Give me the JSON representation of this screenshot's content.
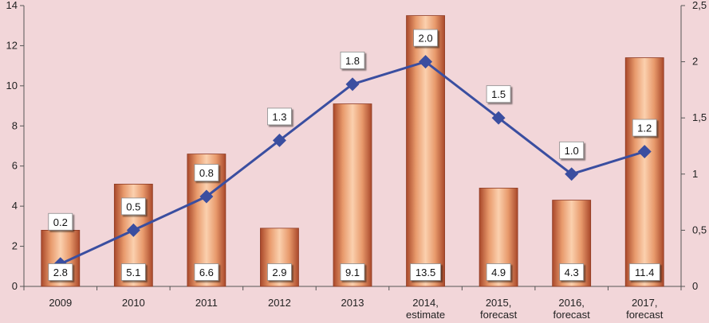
{
  "chart_data": {
    "type": "bar",
    "categories": [
      [
        "2009"
      ],
      [
        "2010"
      ],
      [
        "2011"
      ],
      [
        "2012"
      ],
      [
        "2013"
      ],
      [
        "2014,",
        "estimate"
      ],
      [
        "2015,",
        "forecast"
      ],
      [
        "2016,",
        "forecast"
      ],
      [
        "2017,",
        "forecast"
      ]
    ],
    "series": [
      {
        "type": "bar",
        "axis": "left",
        "values": [
          2.8,
          5.1,
          6.6,
          2.9,
          9.1,
          13.5,
          4.9,
          4.3,
          11.4
        ],
        "labels": [
          "2.8",
          "5.1",
          "6.6",
          "2.9",
          "9.1",
          "13.5",
          "4.9",
          "4.3",
          "11.4"
        ],
        "color": "#c8754a"
      },
      {
        "type": "line",
        "axis": "right",
        "values": [
          0.2,
          0.5,
          0.8,
          1.3,
          1.8,
          2.0,
          1.5,
          1.0,
          1.2
        ],
        "labels": [
          "0.2",
          "0.5",
          "0.8",
          "1.3",
          "1.8",
          "2.0",
          "1.5",
          "1.0",
          "1.2"
        ],
        "color": "#3a4ea0"
      }
    ],
    "y_left": {
      "min": 0,
      "max": 14,
      "ticks": [
        0,
        2,
        4,
        6,
        8,
        10,
        12,
        14
      ],
      "tick_labels": [
        "0",
        "2",
        "4",
        "6",
        "8",
        "10",
        "12",
        "14"
      ]
    },
    "y_right": {
      "min": 0,
      "max": 2.5,
      "ticks": [
        0,
        0.5,
        1,
        1.5,
        2,
        2.5
      ],
      "tick_labels": [
        "0",
        "0,5",
        "1",
        "1,5",
        "2",
        "2,5"
      ]
    },
    "title": "",
    "xlabel": "",
    "ylabel": "",
    "grid": false
  }
}
